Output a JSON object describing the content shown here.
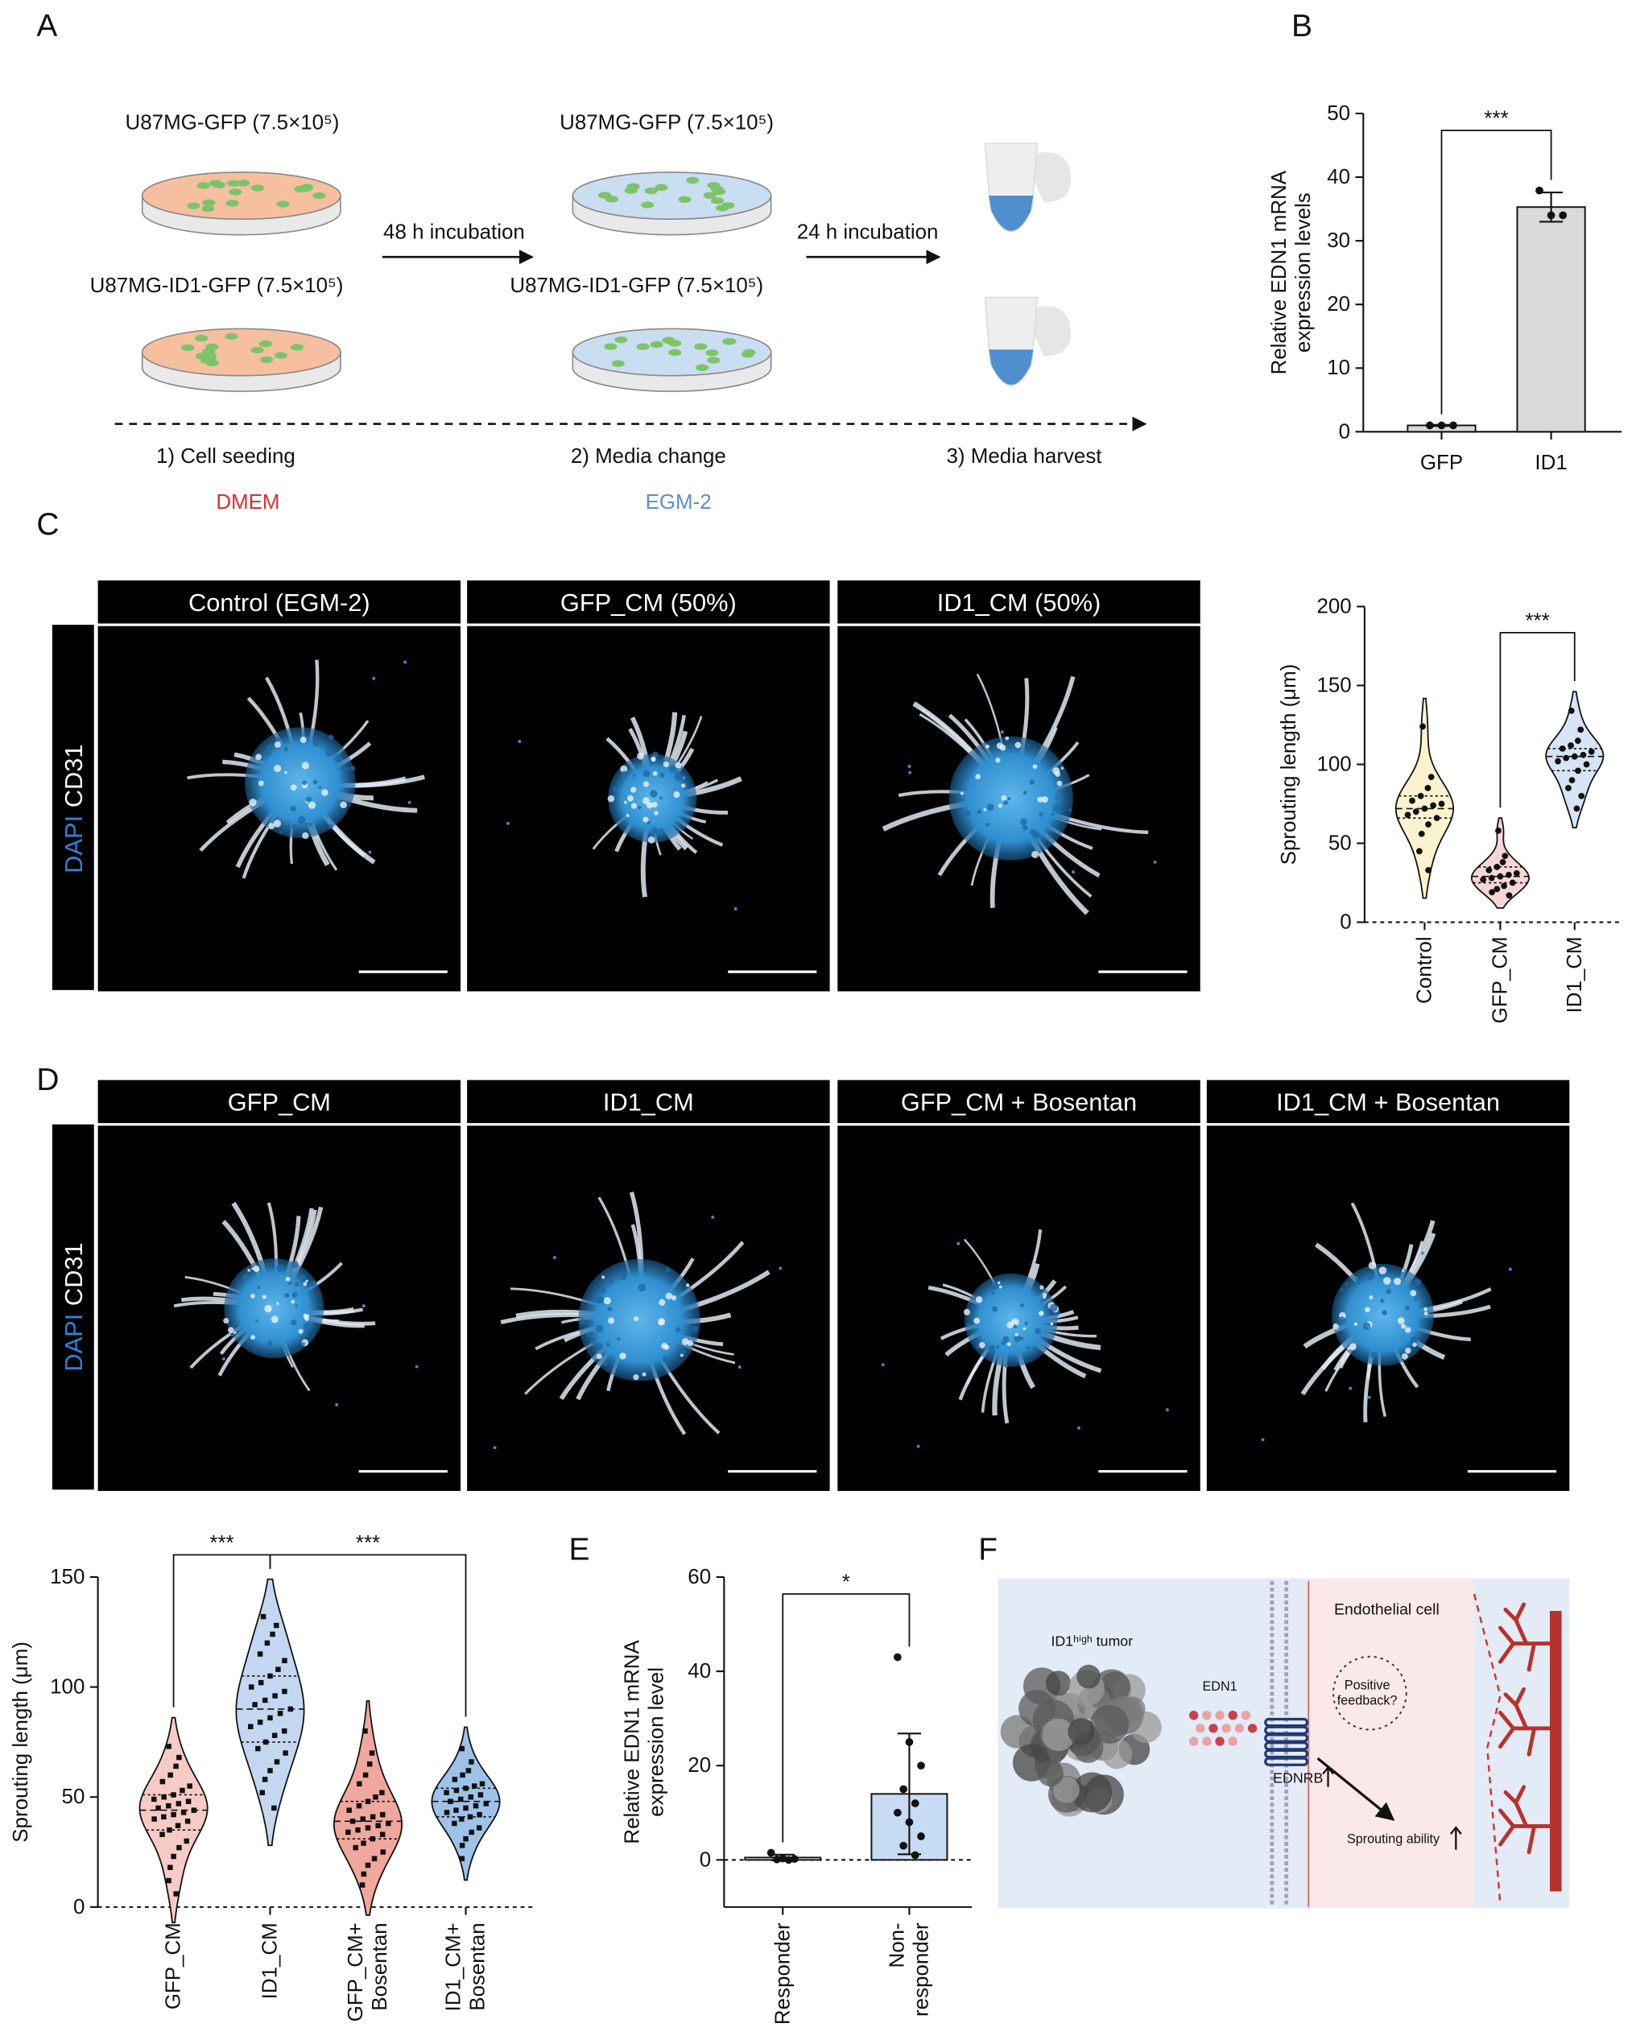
{
  "panel_labels": [
    "A",
    "B",
    "C",
    "D",
    "E",
    "F"
  ],
  "panel_a": {
    "dishes": [
      "U87MG-GFP (7.5×10⁵)",
      "U87MG-ID1-GFP (7.5×10⁵)",
      "U87MG-GFP (7.5×10⁵)",
      "U87MG-ID1-GFP (7.5×10⁵)"
    ],
    "incubations": [
      "48 h incubation",
      "24 h incubation"
    ],
    "steps": [
      "1) Cell seeding",
      "2) Media change",
      "3) Media harvest"
    ],
    "media": [
      "DMEM",
      "EGM-2"
    ]
  },
  "panel_c_images": {
    "headers": [
      "Control (EGM-2)",
      "GFP_CM (50%)",
      "ID1_CM (50%)"
    ],
    "stain": [
      "DAPI",
      "CD31"
    ]
  },
  "panel_d_images": {
    "headers": [
      "GFP_CM",
      "ID1_CM",
      "GFP_CM + Bosentan",
      "ID1_CM + Bosentan"
    ],
    "stain": [
      "DAPI",
      "CD31"
    ]
  },
  "panel_f": {
    "tumor": "ID1ʰⁱᵍʰ tumor",
    "ligand": "EDN1",
    "receptor": "EDNRB",
    "cell": "Endothelial cell",
    "feedback": "Positive\nfeedback?",
    "outcome": "Sprouting ability"
  },
  "chart_data": [
    {
      "type": "bar",
      "ylabel": "Relative EDN1 mRNA\nexpression levels",
      "categories": [
        "GFP",
        "ID1"
      ],
      "values": [
        1.0,
        35.3
      ],
      "errors": [
        0.1,
        2.3
      ],
      "points": [
        [
          1.0,
          1.0,
          1.0
        ],
        [
          37.9,
          34.0,
          34.0
        ]
      ],
      "colors": [
        "#d9d9d9",
        "#d9d9d9"
      ],
      "ylim": [
        0,
        50
      ],
      "yticks": [
        0,
        10,
        20,
        30,
        40,
        50
      ],
      "zero_line": false,
      "annotations": [
        {
          "text": "***",
          "between": [
            "GFP",
            "ID1"
          ]
        }
      ]
    },
    {
      "type": "violin",
      "ylabel": "Sprouting length (μm)",
      "categories": [
        "Control",
        "GFP_CM",
        "ID1_CM"
      ],
      "points": [
        [
          124,
          92,
          85,
          80,
          77,
          75,
          74,
          72,
          70,
          68,
          66,
          62,
          56,
          45,
          33
        ],
        [
          58,
          42,
          38,
          35,
          33,
          31,
          30,
          29,
          28,
          27,
          25,
          23,
          21,
          19,
          17
        ],
        [
          134,
          122,
          115,
          112,
          110,
          108,
          106,
          105,
          104,
          102,
          100,
          96,
          90,
          85,
          80,
          72
        ]
      ],
      "colors": [
        "#fbf3cf",
        "#f6d6d6",
        "#d6e4f5"
      ],
      "ylim": [
        0,
        200
      ],
      "yticks": [
        0,
        50,
        100,
        150,
        200
      ],
      "zero_line": true,
      "annotations": [
        {
          "text": "***",
          "between": [
            "GFP_CM",
            "ID1_CM"
          ]
        }
      ]
    },
    {
      "type": "violin",
      "ylabel": "Sprouting length (μm)",
      "categories": [
        "GFP_CM",
        "ID1_CM",
        "GFP_CM+\nBosentan",
        "ID1_CM+\nBosentan"
      ],
      "points": [
        [
          73,
          68,
          64,
          60,
          57,
          55,
          53,
          51,
          50,
          49,
          48,
          47,
          46,
          45,
          44,
          43,
          42,
          41,
          40,
          39,
          37,
          35,
          33,
          30,
          27,
          23,
          18,
          12,
          6
        ],
        [
          132,
          128,
          124,
          120,
          115,
          112,
          108,
          105,
          102,
          100,
          98,
          96,
          94,
          92,
          90,
          88,
          86,
          84,
          82,
          80,
          78,
          75,
          72,
          70,
          66,
          62,
          58,
          52,
          45
        ],
        [
          80,
          70,
          65,
          60,
          56,
          52,
          50,
          48,
          46,
          44,
          42,
          41,
          40,
          39,
          38,
          37,
          36,
          35,
          34,
          33,
          31,
          29,
          27,
          25,
          22,
          19,
          15,
          10
        ],
        [
          72,
          66,
          62,
          60,
          58,
          56,
          55,
          54,
          53,
          52,
          51,
          50,
          49,
          48,
          47,
          46,
          45,
          44,
          43,
          42,
          41,
          40,
          38,
          36,
          34,
          31,
          28,
          22
        ]
      ],
      "colors": [
        "#f6cbc5",
        "#c3d8f0",
        "#f0a79e",
        "#9fc2e8"
      ],
      "ylim": [
        0,
        150
      ],
      "yticks": [
        0,
        50,
        100,
        150
      ],
      "zero_line": true,
      "annotations": [
        {
          "text": "***",
          "between": [
            "GFP_CM",
            "ID1_CM"
          ]
        },
        {
          "text": "***",
          "between": [
            "ID1_CM",
            "ID1_CM+\nBosentan"
          ]
        }
      ]
    },
    {
      "type": "bar",
      "ylabel": "Relative EDN1 mRNA\nexpression level",
      "categories": [
        "Responder",
        "Non-\nresponder"
      ],
      "values": [
        0.5,
        14
      ],
      "errors": [
        0.6,
        12.8
      ],
      "points": [
        [
          1.5,
          0.3,
          0.2,
          0.1,
          0.0
        ],
        [
          43,
          25,
          20,
          15,
          12,
          10,
          8,
          5,
          3,
          1
        ]
      ],
      "colors": [
        "#ffffff",
        "#c7dcf3"
      ],
      "ylim": [
        -10,
        60
      ],
      "yticks": [
        0,
        20,
        40,
        60
      ],
      "zero_line": true,
      "annotations": [
        {
          "text": "*",
          "between": [
            "Responder",
            "Non-\nresponder"
          ]
        }
      ]
    }
  ]
}
